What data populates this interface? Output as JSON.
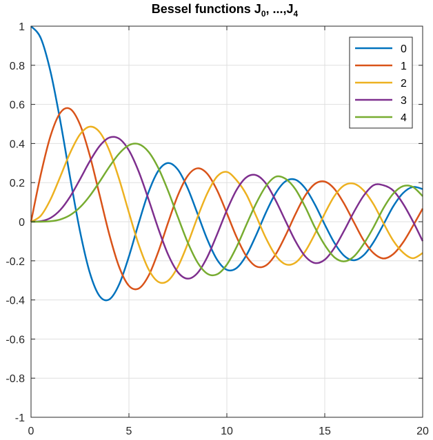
{
  "chart_data": {
    "type": "line",
    "title": {
      "main": "Bessel functions J",
      "sub_first": "0",
      "sep": ", ...,J",
      "sub_last": "4"
    },
    "xlabel": "",
    "ylabel": "",
    "xlim": [
      0,
      20
    ],
    "ylim": [
      -1,
      1
    ],
    "xticks": [
      0,
      5,
      10,
      15,
      20
    ],
    "yticks": [
      -1,
      -0.8,
      -0.6,
      -0.4,
      -0.2,
      0,
      0.2,
      0.4,
      0.6,
      0.8,
      1
    ],
    "xtick_labels": [
      "0",
      "5",
      "10",
      "15",
      "20"
    ],
    "ytick_labels": [
      "-1",
      "-0.8",
      "-0.6",
      "-0.4",
      "-0.2",
      "0",
      "0.2",
      "0.4",
      "0.6",
      "0.8",
      "1"
    ],
    "grid": true,
    "legend_position": "top-right",
    "x": [
      0,
      0.5,
      1,
      1.5,
      2,
      2.5,
      3,
      3.5,
      4,
      4.5,
      5,
      5.5,
      6,
      6.5,
      7,
      7.5,
      8,
      8.5,
      9,
      9.5,
      10,
      10.5,
      11,
      11.5,
      12,
      12.5,
      13,
      13.5,
      14,
      14.5,
      15,
      15.5,
      16,
      16.5,
      17,
      17.5,
      18,
      18.5,
      19,
      19.5,
      20
    ],
    "series": [
      {
        "name": "0",
        "color": "#0072BD",
        "values": [
          1.0,
          0.9385,
          0.7652,
          0.5118,
          0.2239,
          -0.0484,
          -0.2601,
          -0.3801,
          -0.3971,
          -0.3205,
          -0.1776,
          -0.0068,
          0.1506,
          0.2601,
          0.3001,
          0.2663,
          0.1717,
          0.0419,
          -0.0903,
          -0.1939,
          -0.2459,
          -0.2366,
          -0.1712,
          -0.0677,
          0.0477,
          0.1469,
          0.2069,
          0.215,
          0.1711,
          0.0875,
          -0.0142,
          -0.1092,
          -0.1749,
          -0.1971,
          -0.1699,
          -0.1033,
          -0.0134,
          0.0791,
          0.1466,
          0.1776,
          0.167
        ]
      },
      {
        "name": "1",
        "color": "#D95319",
        "values": [
          0.0,
          0.2423,
          0.4401,
          0.5579,
          0.5767,
          0.4971,
          0.3391,
          0.1374,
          -0.066,
          -0.2311,
          -0.3276,
          -0.3414,
          -0.2767,
          -0.1538,
          -0.0047,
          0.1352,
          0.2346,
          0.2731,
          0.2453,
          0.1613,
          0.0435,
          -0.0789,
          -0.1768,
          -0.2284,
          -0.2234,
          -0.1655,
          -0.0703,
          0.038,
          0.1334,
          0.1934,
          0.2051,
          0.1672,
          0.0904,
          -0.0047,
          -0.0977,
          -0.1614,
          -0.188,
          -0.1655,
          -0.1057,
          -0.0222,
          0.0668
        ]
      },
      {
        "name": "2",
        "color": "#EDB120",
        "values": [
          0.0,
          0.0306,
          0.1149,
          0.2321,
          0.3528,
          0.4461,
          0.4861,
          0.4586,
          0.3641,
          0.2178,
          0.0466,
          -0.1173,
          -0.2429,
          -0.3074,
          -0.3014,
          -0.2303,
          -0.113,
          0.0223,
          0.1448,
          0.2311,
          0.2546,
          0.2117,
          0.139,
          0.028,
          -0.0849,
          -0.1734,
          -0.2177,
          -0.2094,
          -0.152,
          -0.0616,
          0.0416,
          0.1322,
          0.1862,
          0.1942,
          0.1584,
          0.0879,
          -0.0075,
          -0.097,
          -0.1578,
          -0.1867,
          -0.1603
        ]
      },
      {
        "name": "3",
        "color": "#7E2F8E",
        "values": [
          0.0,
          0.0026,
          0.0196,
          0.061,
          0.1289,
          0.2166,
          0.3091,
          0.3868,
          0.4302,
          0.4247,
          0.3648,
          0.2561,
          0.1148,
          -0.0353,
          -0.1676,
          -0.2581,
          -0.2911,
          -0.2626,
          -0.1809,
          -0.0653,
          0.0584,
          0.1633,
          0.2273,
          0.2381,
          0.1951,
          0.1076,
          0.0033,
          -0.0987,
          -0.1768,
          -0.2113,
          -0.194,
          -0.1325,
          -0.0438,
          0.0517,
          0.1349,
          0.1871,
          0.1863,
          0.159,
          0.0919,
          0.0024,
          -0.0989
        ]
      },
      {
        "name": "4",
        "color": "#77AC30",
        "values": [
          0.0,
          0.0002,
          0.0025,
          0.0118,
          0.034,
          0.0738,
          0.132,
          0.2044,
          0.2811,
          0.3484,
          0.3912,
          0.3967,
          0.3576,
          0.2748,
          0.1578,
          0.0238,
          -0.1054,
          -0.2077,
          -0.2655,
          -0.2691,
          -0.2196,
          -0.1282,
          -0.015,
          0.0945,
          0.1825,
          0.2302,
          0.2193,
          0.1663,
          0.0762,
          -0.0299,
          -0.1192,
          -0.1826,
          -0.2026,
          -0.1766,
          -0.1116,
          -0.0266,
          0.0696,
          0.1437,
          0.1818,
          0.1779,
          0.1307
        ]
      }
    ]
  }
}
